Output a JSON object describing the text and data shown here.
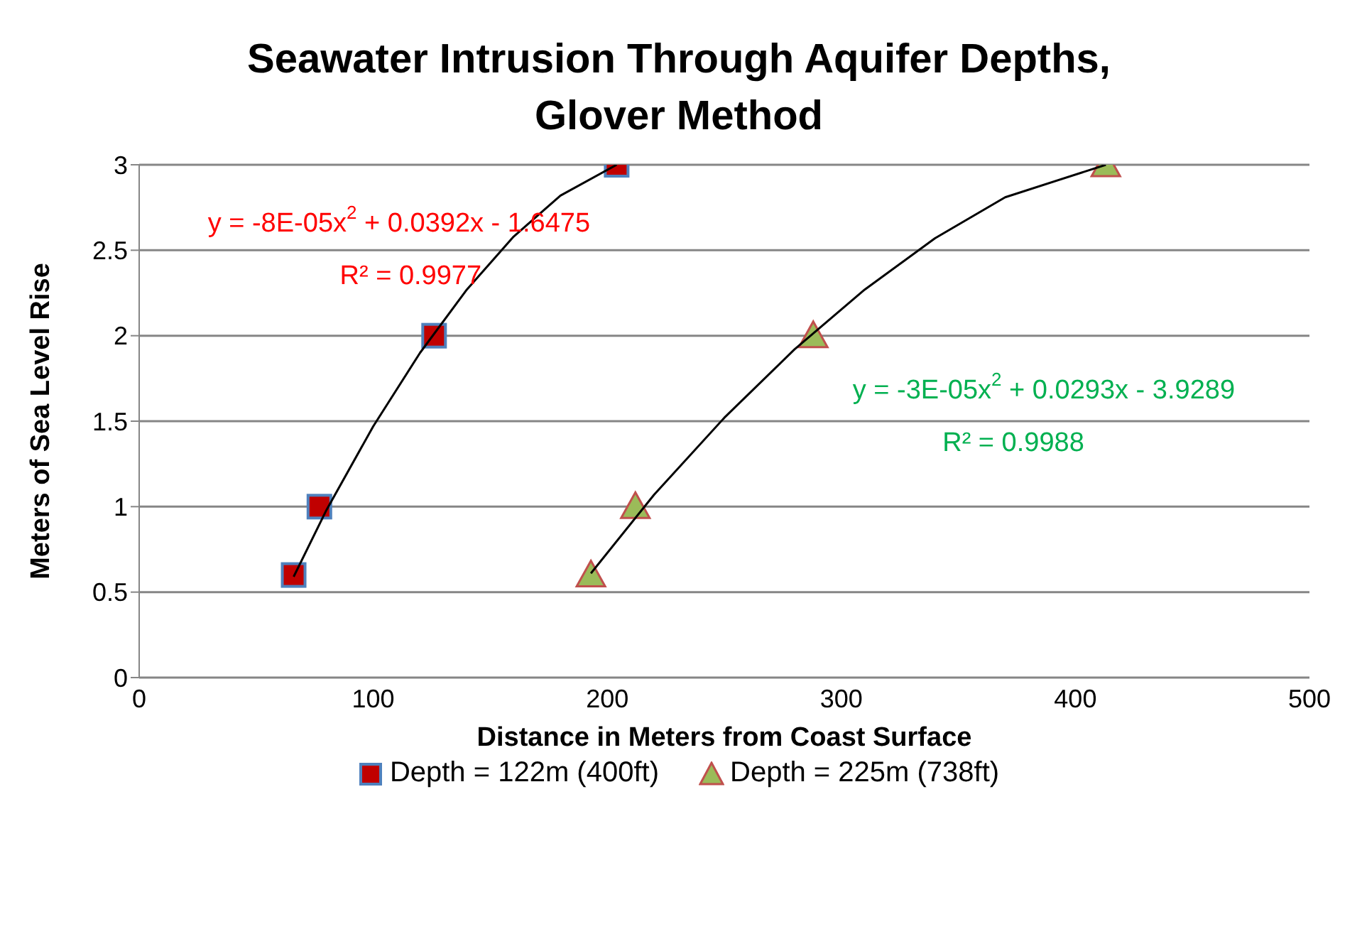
{
  "chart_data": {
    "type": "scatter",
    "title": "Seawater Intrusion Through Aquifer Depths, Glover Method",
    "xlabel": "Distance in Meters from Coast Surface",
    "ylabel": "Meters of Sea Level Rise",
    "series": [
      {
        "name": "Depth = 122m (400ft)",
        "color": "#c00000",
        "marker": "square",
        "x": [
          66,
          77,
          126,
          204
        ],
        "values": [
          0.6,
          1,
          2,
          3
        ]
      },
      {
        "name": "Depth = 225m (738ft)",
        "color": "#9bbb59",
        "marker": "triangle",
        "x": [
          193,
          212,
          288,
          413
        ],
        "values": [
          0.6,
          1,
          2,
          3
        ]
      },
      {
        "type": "line",
        "color": "#000000",
        "x": [
          66,
          80,
          100,
          120,
          140,
          160,
          180,
          204
        ],
        "values": [
          0.59,
          0.98,
          1.47,
          1.9,
          2.27,
          2.58,
          2.82,
          3
        ]
      },
      {
        "type": "line",
        "color": "#000000",
        "x": [
          193,
          220,
          250,
          280,
          310,
          340,
          370,
          413
        ],
        "values": [
          0.61,
          1.07,
          1.52,
          1.92,
          2.27,
          2.57,
          2.81,
          3
        ]
      }
    ],
    "annotations": [
      "y = -8E-05x$^{2}$ + 0.0392x - 1.6475",
      "R² = 0.9977",
      "y = -3E-05x$^{2}$ + 0.0293x - 3.9289",
      "R² = 0.9988"
    ],
    "xlim": [
      0,
      500
    ],
    "xticks": [
      0,
      100,
      200,
      300,
      400,
      500
    ],
    "ylim": [
      0,
      3
    ],
    "yticks": [
      0,
      0.5,
      1,
      1.5,
      2,
      2.5,
      3
    ],
    "grid": "y",
    "legend": "bottom"
  }
}
